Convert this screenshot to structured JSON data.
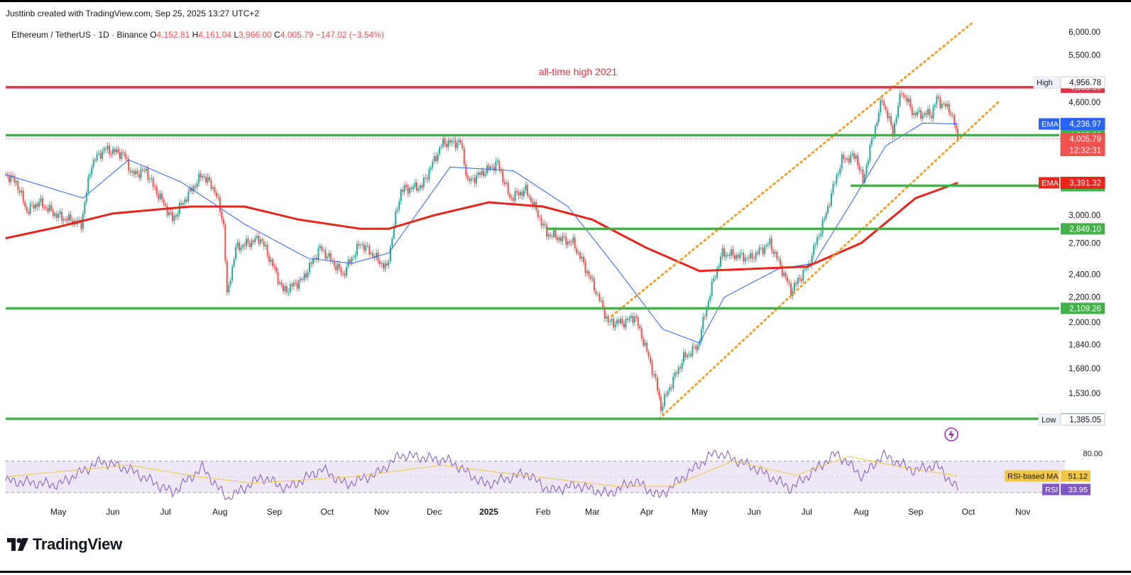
{
  "credit": "Justtinb created with TradingView.com, Sep 25, 2025 13:27 UTC+2",
  "header": {
    "symbol": "Ethereum / TetherUS · 1D · Binance",
    "o_label": "O",
    "o_value": "4,152.81",
    "h_label": "H",
    "h_value": "4,161.04",
    "l_label": "L",
    "l_value": "3,966.00",
    "c_label": "C",
    "c_value": "4,005.79",
    "change": "−147.02 (−3.54%)"
  },
  "annotation": "all-time high 2021",
  "brand": "TradingView",
  "colors": {
    "up": "#26a69a",
    "down": "#ef5350",
    "red_level": "#e03343",
    "green_level": "#43b049",
    "ema_slow": "#e8251b",
    "ema_fast": "#2962ff",
    "channel": "#f0a030",
    "rsi": "#7e57c2",
    "rsi_ma": "#f2c744",
    "rsi_band": "#ede7f6"
  },
  "chart_data": {
    "type": "candlestick",
    "title": "Ethereum / TetherUS · 1D · Binance",
    "y_scale": "log",
    "ylim": [
      1200,
      6200
    ],
    "x_range": [
      "2024-04-01",
      "2025-11-25"
    ],
    "x_ticks": [
      {
        "label": "May",
        "date": "2024-05-01"
      },
      {
        "label": "Jun",
        "date": "2024-06-01"
      },
      {
        "label": "Jul",
        "date": "2024-07-01"
      },
      {
        "label": "Aug",
        "date": "2024-08-01"
      },
      {
        "label": "Sep",
        "date": "2024-09-01"
      },
      {
        "label": "Oct",
        "date": "2024-10-01"
      },
      {
        "label": "Nov",
        "date": "2024-11-01"
      },
      {
        "label": "Dec",
        "date": "2024-12-01"
      },
      {
        "label": "2025",
        "date": "2025-01-01",
        "bold": true
      },
      {
        "label": "Feb",
        "date": "2025-02-01"
      },
      {
        "label": "Mar",
        "date": "2025-03-01"
      },
      {
        "label": "Apr",
        "date": "2025-04-01"
      },
      {
        "label": "May",
        "date": "2025-05-01"
      },
      {
        "label": "Jun",
        "date": "2025-06-01"
      },
      {
        "label": "Jul",
        "date": "2025-07-01"
      },
      {
        "label": "Aug",
        "date": "2025-08-01"
      },
      {
        "label": "Sep",
        "date": "2025-09-01"
      },
      {
        "label": "Oct",
        "date": "2025-10-01"
      },
      {
        "label": "Nov",
        "date": "2025-11-01"
      }
    ],
    "y_ticks": [
      {
        "label": "6,000.00",
        "value": 6000
      },
      {
        "label": "5,500.00",
        "value": 5500
      },
      {
        "label": "4,600.00",
        "value": 4600
      },
      {
        "label": "3,000.00",
        "value": 3000
      },
      {
        "label": "2,700.00",
        "value": 2700
      },
      {
        "label": "2,400.00",
        "value": 2400
      },
      {
        "label": "2,200.00",
        "value": 2200
      },
      {
        "label": "2,000.00",
        "value": 2000
      },
      {
        "label": "1,840.00",
        "value": 1840
      },
      {
        "label": "1,680.00",
        "value": 1680
      },
      {
        "label": "1,530.00",
        "value": 1530
      }
    ],
    "horizontal_levels": [
      {
        "value": 4868,
        "label": "4,868.00",
        "color": "red",
        "from": "2024-04-01"
      },
      {
        "value": 4060,
        "label": "4,060.00",
        "color": "green",
        "from": "2024-04-01"
      },
      {
        "value": 3354.29,
        "label": "3,354.29",
        "color": "green",
        "from": "2025-07-26"
      },
      {
        "value": 2849.1,
        "label": "2,849.10",
        "color": "green",
        "from": "2025-02-03"
      },
      {
        "value": 2109.26,
        "label": "2,109.26",
        "color": "green",
        "from": "2024-04-01"
      },
      {
        "value": 1389.01,
        "label": "1,389.01",
        "color": "green",
        "from": "2024-04-01"
      }
    ],
    "channel": {
      "upper": [
        [
          "2025-03-12",
          2050
        ],
        [
          "2025-10-03",
          6200
        ]
      ],
      "lower": [
        [
          "2025-04-08",
          1389
        ],
        [
          "2025-10-18",
          4600
        ]
      ]
    },
    "price_tags": [
      {
        "prefix": "High",
        "label": "4,956.78",
        "value": 4956.78
      },
      {
        "prefix": "EMA",
        "label": "4,236.97",
        "value": 4236.97
      },
      {
        "prefix": "",
        "label": "4,005.79",
        "value": 4005.79,
        "sub": "12:32:31"
      },
      {
        "prefix": "EMA",
        "label": "3,391.32",
        "value": 3391.32
      },
      {
        "prefix": "Low",
        "label": "1,385.05",
        "value": 1385.05
      }
    ],
    "last_close": 4005.79,
    "candles_path": [
      [
        "2024-04-01",
        3500
      ],
      [
        "2024-04-07",
        3400
      ],
      [
        "2024-04-13",
        3050
      ],
      [
        "2024-04-20",
        3150
      ],
      [
        "2024-04-30",
        3000
      ],
      [
        "2024-05-14",
        2900
      ],
      [
        "2024-05-20",
        3650
      ],
      [
        "2024-05-27",
        3850
      ],
      [
        "2024-06-07",
        3780
      ],
      [
        "2024-06-12",
        3500
      ],
      [
        "2024-06-20",
        3550
      ],
      [
        "2024-06-24",
        3350
      ],
      [
        "2024-07-05",
        2950
      ],
      [
        "2024-07-14",
        3250
      ],
      [
        "2024-07-22",
        3500
      ],
      [
        "2024-07-29",
        3300
      ],
      [
        "2024-08-03",
        2900
      ],
      [
        "2024-08-05",
        2200
      ],
      [
        "2024-08-10",
        2650
      ],
      [
        "2024-08-24",
        2750
      ],
      [
        "2024-09-06",
        2250
      ],
      [
        "2024-09-17",
        2350
      ],
      [
        "2024-09-27",
        2650
      ],
      [
        "2024-10-10",
        2400
      ],
      [
        "2024-10-20",
        2700
      ],
      [
        "2024-11-04",
        2450
      ],
      [
        "2024-11-12",
        3300
      ],
      [
        "2024-11-24",
        3350
      ],
      [
        "2024-12-06",
        3950
      ],
      [
        "2024-12-16",
        3950
      ],
      [
        "2024-12-20",
        3400
      ],
      [
        "2025-01-06",
        3650
      ],
      [
        "2025-01-13",
        3200
      ],
      [
        "2025-01-22",
        3300
      ],
      [
        "2025-02-03",
        2800
      ],
      [
        "2025-02-18",
        2700
      ],
      [
        "2025-03-03",
        2250
      ],
      [
        "2025-03-10",
        2000
      ],
      [
        "2025-03-19",
        2000
      ],
      [
        "2025-03-25",
        2050
      ],
      [
        "2025-04-06",
        1600
      ],
      [
        "2025-04-09",
        1450
      ],
      [
        "2025-04-22",
        1750
      ],
      [
        "2025-04-30",
        1830
      ],
      [
        "2025-05-09",
        2350
      ],
      [
        "2025-05-14",
        2600
      ],
      [
        "2025-05-30",
        2550
      ],
      [
        "2025-06-10",
        2700
      ],
      [
        "2025-06-22",
        2250
      ],
      [
        "2025-07-02",
        2480
      ],
      [
        "2025-07-11",
        2950
      ],
      [
        "2025-07-21",
        3700
      ],
      [
        "2025-07-29",
        3750
      ],
      [
        "2025-08-02",
        3400
      ],
      [
        "2025-08-13",
        4650
      ],
      [
        "2025-08-19",
        4100
      ],
      [
        "2025-08-24",
        4800
      ],
      [
        "2025-08-31",
        4400
      ],
      [
        "2025-09-10",
        4400
      ],
      [
        "2025-09-13",
        4650
      ],
      [
        "2025-09-21",
        4450
      ],
      [
        "2025-09-25",
        4005.79
      ]
    ],
    "ema_fast": [
      [
        "2024-04-01",
        3500
      ],
      [
        "2024-05-15",
        3200
      ],
      [
        "2024-06-10",
        3700
      ],
      [
        "2024-07-10",
        3400
      ],
      [
        "2024-08-15",
        2900
      ],
      [
        "2024-09-20",
        2550
      ],
      [
        "2024-10-15",
        2500
      ],
      [
        "2024-11-05",
        2600
      ],
      [
        "2024-12-10",
        3600
      ],
      [
        "2025-01-15",
        3550
      ],
      [
        "2025-02-15",
        3100
      ],
      [
        "2025-03-15",
        2450
      ],
      [
        "2025-04-10",
        1950
      ],
      [
        "2025-05-01",
        1850
      ],
      [
        "2025-05-15",
        2200
      ],
      [
        "2025-06-15",
        2450
      ],
      [
        "2025-07-05",
        2500
      ],
      [
        "2025-07-25",
        3100
      ],
      [
        "2025-08-15",
        3900
      ],
      [
        "2025-09-05",
        4250
      ],
      [
        "2025-09-25",
        4236.97
      ]
    ],
    "ema_slow": [
      [
        "2024-04-01",
        2750
      ],
      [
        "2024-05-01",
        2870
      ],
      [
        "2024-06-01",
        3020
      ],
      [
        "2024-07-15",
        3100
      ],
      [
        "2024-08-15",
        3100
      ],
      [
        "2024-09-15",
        2950
      ],
      [
        "2024-10-20",
        2850
      ],
      [
        "2024-11-05",
        2850
      ],
      [
        "2024-12-01",
        3000
      ],
      [
        "2025-01-01",
        3150
      ],
      [
        "2025-02-01",
        3100
      ],
      [
        "2025-03-01",
        2950
      ],
      [
        "2025-04-01",
        2650
      ],
      [
        "2025-05-01",
        2430
      ],
      [
        "2025-06-01",
        2450
      ],
      [
        "2025-07-01",
        2470
      ],
      [
        "2025-08-01",
        2700
      ],
      [
        "2025-09-01",
        3200
      ],
      [
        "2025-09-25",
        3391.32
      ]
    ],
    "rsi": {
      "ylim": [
        20,
        85
      ],
      "ticks": [
        {
          "label": "80.00",
          "value": 80
        }
      ],
      "bands": [
        70,
        30
      ],
      "ma_label": "RSI-based MA",
      "ma_value": 51.12,
      "rsi_label": "RSI",
      "rsi_value": 33.95,
      "path": [
        [
          "2024-04-01",
          45
        ],
        [
          "2024-05-01",
          40
        ],
        [
          "2024-05-25",
          70
        ],
        [
          "2024-06-10",
          60
        ],
        [
          "2024-07-05",
          30
        ],
        [
          "2024-07-22",
          62
        ],
        [
          "2024-08-05",
          22
        ],
        [
          "2024-08-25",
          50
        ],
        [
          "2024-09-08",
          35
        ],
        [
          "2024-09-28",
          60
        ],
        [
          "2024-10-12",
          40
        ],
        [
          "2024-10-30",
          55
        ],
        [
          "2024-11-12",
          78
        ],
        [
          "2024-12-10",
          70
        ],
        [
          "2024-12-30",
          40
        ],
        [
          "2025-01-22",
          55
        ],
        [
          "2025-02-05",
          32
        ],
        [
          "2025-02-20",
          40
        ],
        [
          "2025-03-10",
          28
        ],
        [
          "2025-03-25",
          45
        ],
        [
          "2025-04-08",
          25
        ],
        [
          "2025-05-10",
          82
        ],
        [
          "2025-06-01",
          62
        ],
        [
          "2025-06-22",
          35
        ],
        [
          "2025-07-18",
          80
        ],
        [
          "2025-08-02",
          50
        ],
        [
          "2025-08-13",
          78
        ],
        [
          "2025-08-31",
          58
        ],
        [
          "2025-09-13",
          65
        ],
        [
          "2025-09-25",
          33.95
        ]
      ],
      "ma_path": [
        [
          "2024-04-01",
          50
        ],
        [
          "2024-06-10",
          65
        ],
        [
          "2024-07-20",
          50
        ],
        [
          "2024-08-20",
          42
        ],
        [
          "2024-10-15",
          50
        ],
        [
          "2024-12-05",
          65
        ],
        [
          "2025-01-20",
          52
        ],
        [
          "2025-03-15",
          38
        ],
        [
          "2025-04-15",
          38
        ],
        [
          "2025-05-20",
          70
        ],
        [
          "2025-06-25",
          52
        ],
        [
          "2025-07-25",
          76
        ],
        [
          "2025-08-25",
          62
        ],
        [
          "2025-09-25",
          51.12
        ]
      ]
    }
  }
}
